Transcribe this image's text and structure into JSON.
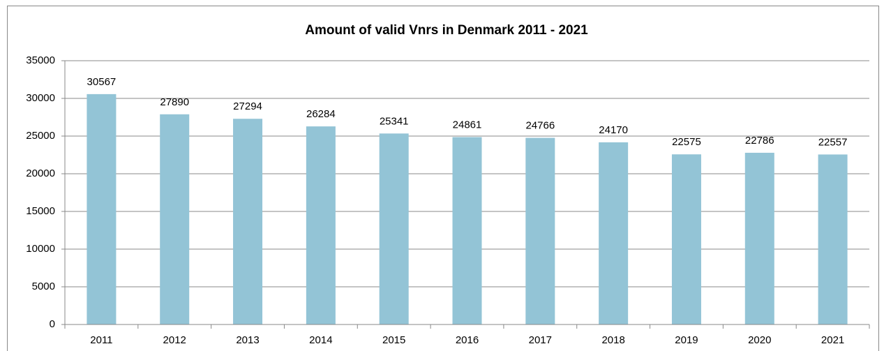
{
  "chart_data": {
    "type": "bar",
    "title": "Amount of valid Vnrs in Denmark 2011 - 2021",
    "categories": [
      "2011",
      "2012",
      "2013",
      "2014",
      "2015",
      "2016",
      "2017",
      "2018",
      "2019",
      "2020",
      "2021"
    ],
    "values": [
      30567,
      27890,
      27294,
      26284,
      25341,
      24861,
      24766,
      24170,
      22575,
      22786,
      22557
    ],
    "color": "#93c4d6",
    "ylim": [
      0,
      35000
    ],
    "yticks": [
      0,
      5000,
      10000,
      15000,
      20000,
      25000,
      30000,
      35000
    ],
    "grid": true
  }
}
